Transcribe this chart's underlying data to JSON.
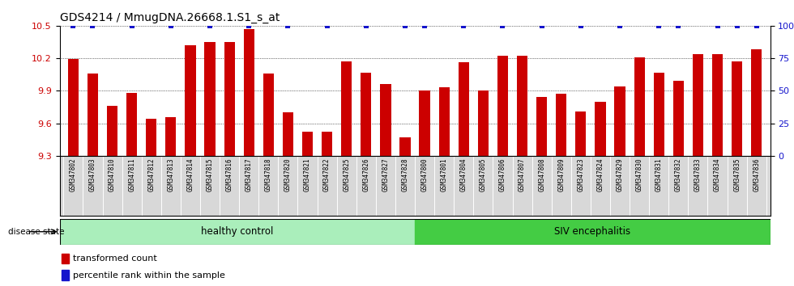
{
  "title": "GDS4214 / MmugDNA.26668.1.S1_s_at",
  "samples": [
    "GSM347802",
    "GSM347803",
    "GSM347810",
    "GSM347811",
    "GSM347812",
    "GSM347813",
    "GSM347814",
    "GSM347815",
    "GSM347816",
    "GSM347817",
    "GSM347818",
    "GSM347820",
    "GSM347821",
    "GSM347822",
    "GSM347825",
    "GSM347826",
    "GSM347827",
    "GSM347828",
    "GSM347800",
    "GSM347801",
    "GSM347804",
    "GSM347805",
    "GSM347806",
    "GSM347807",
    "GSM347808",
    "GSM347809",
    "GSM347823",
    "GSM347824",
    "GSM347829",
    "GSM347830",
    "GSM347831",
    "GSM347832",
    "GSM347833",
    "GSM347834",
    "GSM347835",
    "GSM347836"
  ],
  "bar_values": [
    10.19,
    10.06,
    9.76,
    9.88,
    9.64,
    9.66,
    10.32,
    10.35,
    10.35,
    10.47,
    10.06,
    9.7,
    9.52,
    9.52,
    10.17,
    10.07,
    9.96,
    9.47,
    9.9,
    9.93,
    10.16,
    9.9,
    10.22,
    10.22,
    9.84,
    9.87,
    9.71,
    9.8,
    9.94,
    10.21,
    10.07,
    9.99,
    10.24,
    10.24,
    10.17,
    10.28
  ],
  "has_dot": [
    true,
    true,
    false,
    true,
    false,
    true,
    false,
    true,
    false,
    true,
    false,
    true,
    false,
    true,
    false,
    true,
    false,
    true,
    true,
    false,
    true,
    false,
    true,
    false,
    true,
    false,
    true,
    false,
    true,
    false,
    true,
    true,
    false,
    true,
    true,
    true
  ],
  "healthy_count": 18,
  "ylim_left": [
    9.3,
    10.5
  ],
  "ylim_right": [
    0,
    100
  ],
  "yticks_left": [
    9.3,
    9.6,
    9.9,
    10.2,
    10.5
  ],
  "yticks_right": [
    0,
    25,
    50,
    75,
    100
  ],
  "bar_color": "#cc0000",
  "dot_color": "#1515cc",
  "healthy_color": "#aaeebb",
  "siv_color": "#44cc44",
  "background_color": "#ffffff",
  "label_bar": "transformed count",
  "label_dot": "percentile rank within the sample",
  "disease_state_label": "disease state",
  "healthy_label": "healthy control",
  "siv_label": "SIV encephalitis",
  "title_fontsize": 10,
  "tick_fontsize": 8,
  "bar_width": 0.55
}
